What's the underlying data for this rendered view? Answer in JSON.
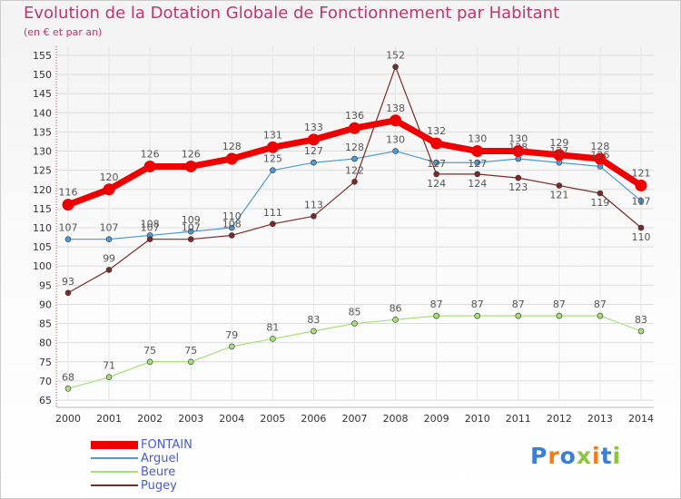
{
  "chart_data": {
    "type": "line",
    "title": "Evolution de la Dotation Globale de Fonctionnement par Habitant",
    "subtitle": "(en € et par an)",
    "x": [
      "2000",
      "2001",
      "2002",
      "2003",
      "2004",
      "2005",
      "2006",
      "2007",
      "2008",
      "2009",
      "2010",
      "2011",
      "2012",
      "2013",
      "2014"
    ],
    "ylim": [
      65,
      155
    ],
    "yticks": [
      65,
      70,
      75,
      80,
      85,
      90,
      95,
      100,
      105,
      110,
      115,
      120,
      125,
      130,
      135,
      140,
      145,
      150,
      155
    ],
    "grid": true,
    "legend_position": "bottom-left",
    "series": [
      {
        "name": "FONTAIN",
        "color": "#ee0000",
        "values": [
          116,
          120,
          126,
          126,
          128,
          131,
          133,
          136,
          138,
          132,
          130,
          130,
          129,
          128,
          121
        ]
      },
      {
        "name": "Arguel",
        "color": "#4d9ad4",
        "values": [
          107,
          107,
          108,
          109,
          110,
          125,
          127,
          128,
          130,
          127,
          127,
          128,
          127,
          126,
          117
        ]
      },
      {
        "name": "Beure",
        "color": "#a7e07a",
        "values": [
          68,
          71,
          75,
          75,
          79,
          81,
          83,
          85,
          86,
          87,
          87,
          87,
          87,
          87,
          83
        ]
      },
      {
        "name": "Pugey",
        "color": "#7b2a2a",
        "values": [
          93,
          99,
          107,
          107,
          108,
          111,
          113,
          122,
          152,
          124,
          124,
          123,
          121,
          119,
          110
        ]
      }
    ]
  },
  "logo": {
    "text": "Proxiti",
    "letters": [
      "P",
      "r",
      "o",
      "x",
      "i",
      "t",
      "i"
    ],
    "colors": [
      "#3a7fd5",
      "#f07d1a",
      "#3a7fd5",
      "#8cc63f",
      "#f07d1a",
      "#3a7fd5",
      "#8cc63f"
    ]
  }
}
